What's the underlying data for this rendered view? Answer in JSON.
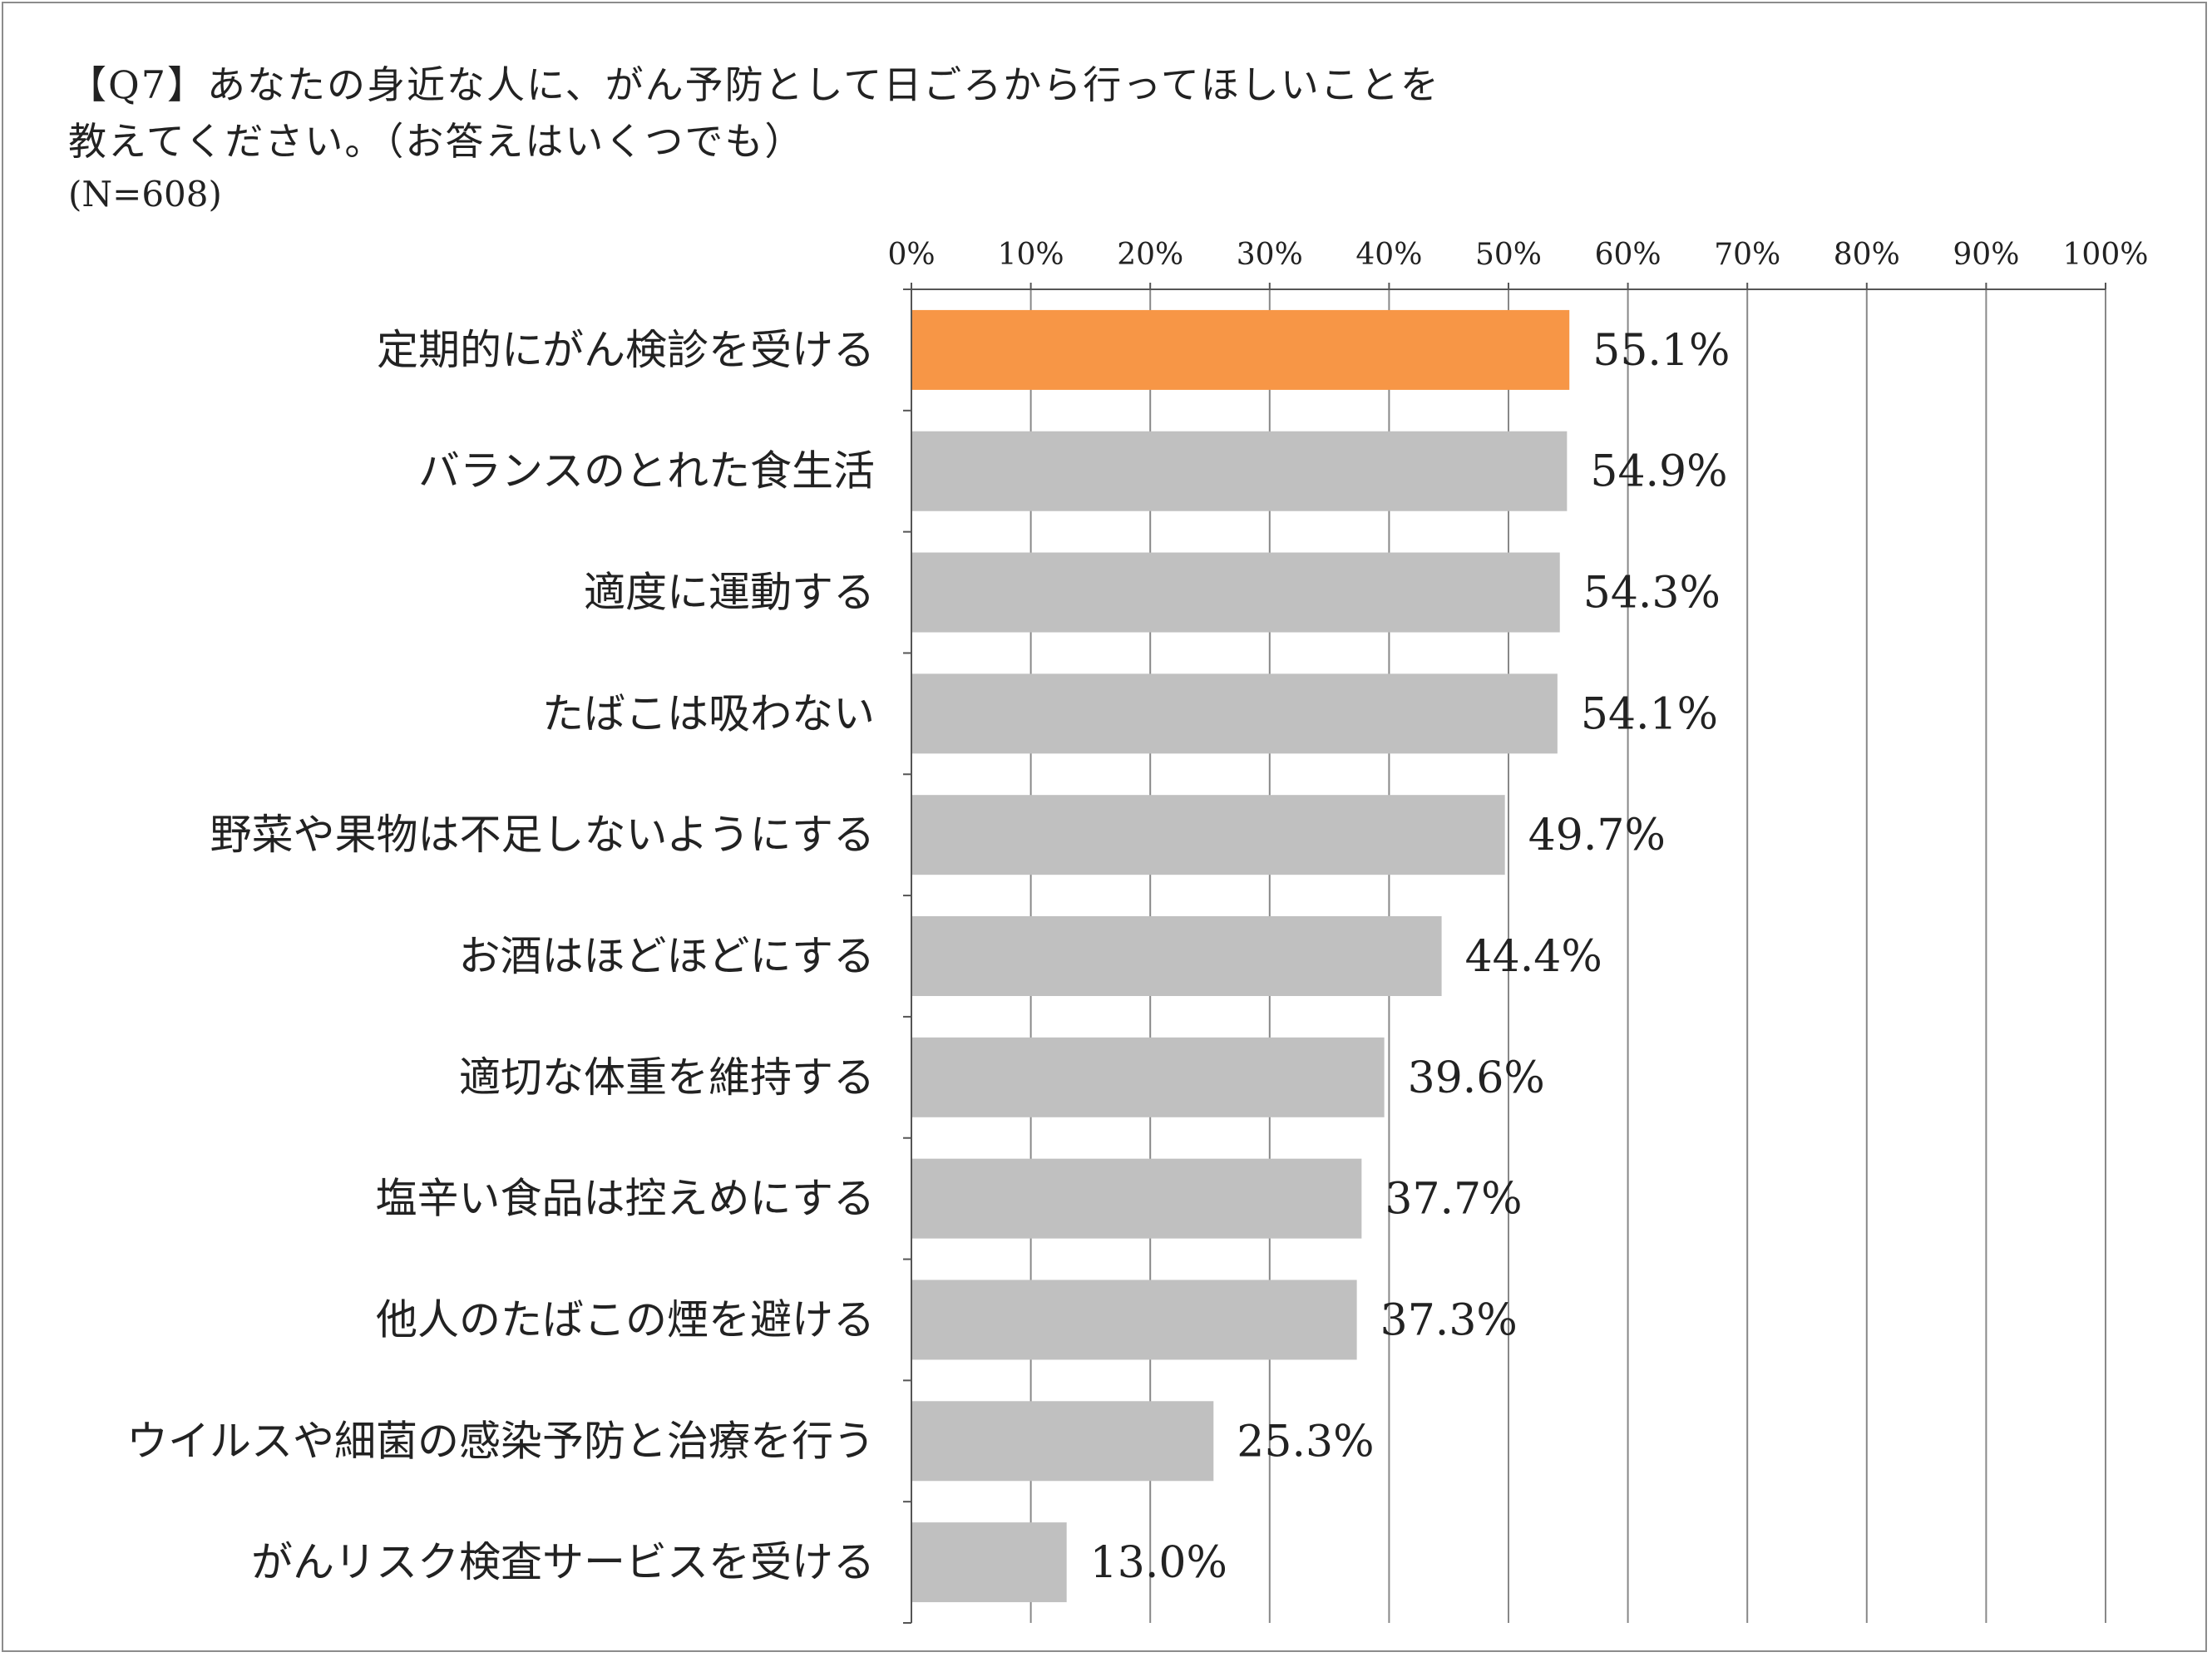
{
  "chart_data": {
    "type": "bar",
    "orientation": "horizontal",
    "title_lines": [
      "【Q7】あなたの身近な人に、がん予防として日ごろから行ってほしいことを",
      "教えてください。（お答えはいくつでも）"
    ],
    "subtitle": "(N=608)",
    "categories": [
      "定期的にがん検診を受ける",
      "バランスのとれた食生活",
      "適度に運動する",
      "たばこは吸わない",
      "野菜や果物は不足しないようにする",
      "お酒はほどほどにする",
      "適切な体重を維持する",
      "塩辛い食品は控えめにする",
      "他人のたばこの煙を避ける",
      "ウイルスや細菌の感染予防と治療を行う",
      "がんリスク検査サービスを受ける"
    ],
    "values": [
      55.1,
      54.9,
      54.3,
      54.1,
      49.7,
      44.4,
      39.6,
      37.7,
      37.3,
      25.3,
      13.0
    ],
    "value_labels": [
      "55.1%",
      "54.9%",
      "54.3%",
      "54.1%",
      "49.7%",
      "44.4%",
      "39.6%",
      "37.7%",
      "37.3%",
      "25.3%",
      "13.0%"
    ],
    "xlim": [
      0,
      100
    ],
    "xticks": [
      0,
      10,
      20,
      30,
      40,
      50,
      60,
      70,
      80,
      90,
      100
    ],
    "xtick_labels": [
      "0%",
      "10%",
      "20%",
      "30%",
      "40%",
      "50%",
      "60%",
      "70%",
      "80%",
      "90%",
      "100%"
    ],
    "axis_position": "top",
    "grid": true,
    "highlight_index": 0,
    "colors": {
      "highlight": "#F79646",
      "bar": "#C0C0C0",
      "grid": "#888888",
      "axis": "#555555"
    }
  }
}
